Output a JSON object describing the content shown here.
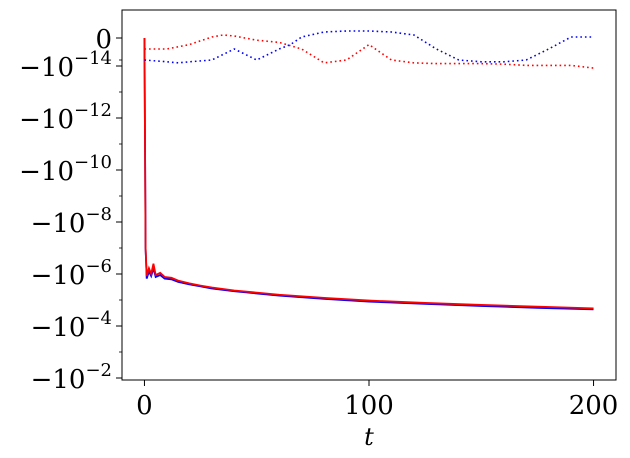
{
  "chart_data": {
    "type": "line",
    "title": "",
    "xlabel": "t",
    "ylabel": "",
    "xlim": [
      -10,
      210
    ],
    "x_ticks": [
      {
        "value": 0,
        "label": "0"
      },
      {
        "value": 100,
        "label": "100"
      },
      {
        "value": 200,
        "label": "200"
      }
    ],
    "y_scale": "symlog-negative",
    "y_ticks": [
      {
        "value": 0,
        "label": "0",
        "mantissa": "0",
        "exponent": ""
      },
      {
        "value": -1e-14,
        "label": "-10^-14",
        "mantissa": "−10",
        "exponent": "−14"
      },
      {
        "value": -1e-12,
        "label": "-10^-12",
        "mantissa": "−10",
        "exponent": "−12"
      },
      {
        "value": -1e-10,
        "label": "-10^-10",
        "mantissa": "−10",
        "exponent": "−10"
      },
      {
        "value": -1e-08,
        "label": "-10^-8",
        "mantissa": "−10",
        "exponent": "−8"
      },
      {
        "value": -1e-06,
        "label": "-10^-6",
        "mantissa": "−10",
        "exponent": "−6"
      },
      {
        "value": -0.0001,
        "label": "-10^-4",
        "mantissa": "−10",
        "exponent": "−4"
      },
      {
        "value": -0.01,
        "label": "-10^-2",
        "mantissa": "−10",
        "exponent": "−2"
      }
    ],
    "grid": false,
    "legend": "none",
    "series": [
      {
        "color": "#0000ff",
        "style": "solid",
        "x": [
          0,
          0.5,
          1,
          2,
          3,
          4,
          5,
          7,
          9,
          12,
          15,
          20,
          25,
          30,
          40,
          50,
          60,
          80,
          100,
          125,
          150,
          175,
          200
        ],
        "y": [
          0,
          -1e-07,
          -1.5e-06,
          -8e-07,
          -1.2e-06,
          -6e-07,
          -1.3e-06,
          -1.1e-06,
          -1.5e-06,
          -1.6e-06,
          -2e-06,
          -2.5e-06,
          -3e-06,
          -3.6e-06,
          -4.6e-06,
          -5.6e-06,
          -6.8e-06,
          -9e-06,
          -1.15e-05,
          -1.4e-05,
          -1.7e-05,
          -2e-05,
          -2.3e-05
        ]
      },
      {
        "color": "#ff0000",
        "style": "solid",
        "x": [
          0,
          0.5,
          1,
          2,
          3,
          4,
          5,
          7,
          9,
          12,
          15,
          20,
          25,
          30,
          40,
          50,
          60,
          80,
          100,
          125,
          150,
          175,
          200
        ],
        "y": [
          0,
          -1e-07,
          -1.2e-06,
          -6e-07,
          -1e-06,
          -4e-07,
          -1.1e-06,
          -9e-07,
          -1.3e-06,
          -1.4e-06,
          -1.8e-06,
          -2.3e-06,
          -2.8e-06,
          -3.3e-06,
          -4.3e-06,
          -5.2e-06,
          -6.3e-06,
          -8.3e-06,
          -1.05e-05,
          -1.3e-05,
          -1.55e-05,
          -1.8e-05,
          -2.1e-05
        ]
      },
      {
        "color": "#0000ff",
        "style": "dotted",
        "x": [
          0,
          10,
          15,
          20,
          30,
          40,
          50,
          60,
          65,
          70,
          80,
          90,
          100,
          110,
          120,
          130,
          140,
          150,
          160,
          170,
          180,
          190,
          200
        ],
        "y": [
          -1e-15,
          -2e-15,
          -3e-15,
          -2e-15,
          -1e-15,
          -5e-16,
          -1e-15,
          -5e-16,
          -3e-16,
          1e-16,
          6e-16,
          7e-16,
          7e-16,
          6e-16,
          3e-16,
          -5e-16,
          -1e-15,
          -2e-15,
          -2e-15,
          -1e-15,
          -5e-16,
          1e-16,
          1e-16
        ]
      },
      {
        "color": "#ff0000",
        "style": "dotted",
        "x": [
          0,
          10,
          20,
          30,
          35,
          40,
          50,
          60,
          70,
          80,
          90,
          100,
          110,
          120,
          130,
          140,
          150,
          160,
          170,
          180,
          190,
          200
        ],
        "y": [
          -5e-16,
          -5e-16,
          -3e-16,
          1e-16,
          3e-16,
          2e-16,
          -1e-16,
          -2e-16,
          -5e-16,
          -3e-15,
          -1e-15,
          -3e-16,
          -1e-15,
          -3e-15,
          -4e-15,
          -4e-15,
          -4e-15,
          -5e-15,
          -8e-15,
          -8e-15,
          -8e-15,
          -1.2e-14
        ]
      }
    ]
  }
}
